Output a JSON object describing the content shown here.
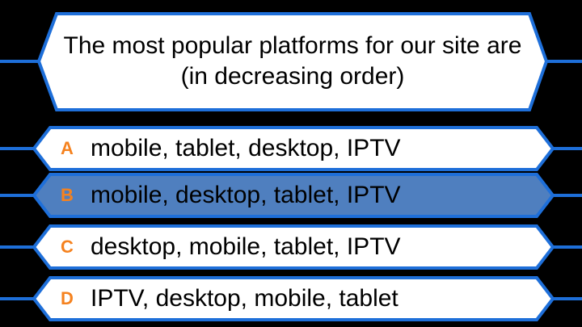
{
  "question": {
    "text": "The most popular platforms for our site are (in decreasing order)"
  },
  "answers": [
    {
      "letter": "A",
      "text": "mobile, tablet, desktop, IPTV",
      "selected": false
    },
    {
      "letter": "B",
      "text": "mobile, desktop, tablet, IPTV",
      "selected": true
    },
    {
      "letter": "C",
      "text": "desktop, mobile, tablet, IPTV",
      "selected": false
    },
    {
      "letter": "D",
      "text": "IPTV, desktop, mobile, tablet",
      "selected": false
    }
  ],
  "colors": {
    "background": "#000000",
    "border": "#1E6FD9",
    "panel_fill": "#FFFFFF",
    "selected_fill": "#4F7FBF",
    "letter": "#F5821F",
    "text": "#000000"
  }
}
